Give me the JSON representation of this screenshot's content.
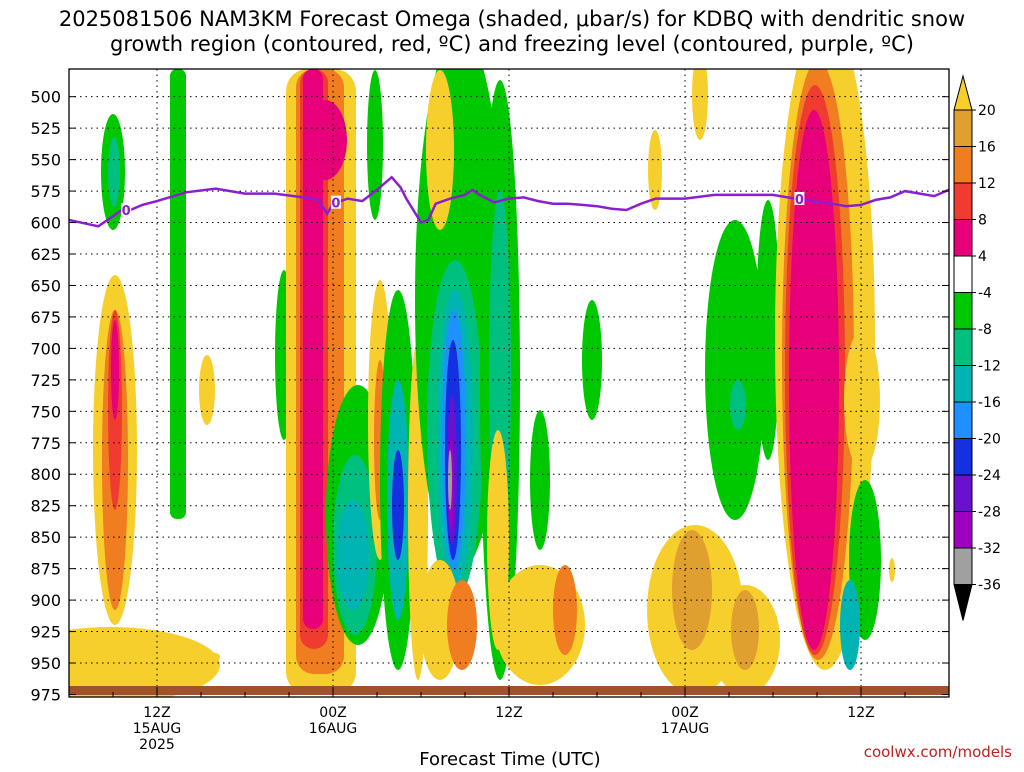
{
  "title_line1": "2025081506 NAM3KM Forecast Omega (shaded, μbar/s) for KDBQ with dendritic snow",
  "title_line2": "growth region (contoured, red, ºC) and freezing level (contoured, purple, ºC)",
  "xlabel": "Forecast Time (UTC)",
  "credit": "coolwx.com/models",
  "chart_data": {
    "type": "heatmap",
    "title": "2025081506 NAM3KM Forecast Omega (shaded, μbar/s) for KDBQ with dendritic snow growth region (contoured, red, ºC) and freezing level (contoured, purple, ºC)",
    "xlabel": "Forecast Time (UTC)",
    "ylabel": "",
    "x_range_hours": [
      0,
      60
    ],
    "y_range_hpa": [
      977,
      478
    ],
    "y_ticks": [
      "500",
      "525",
      "550",
      "575",
      "600",
      "625",
      "650",
      "675",
      "700",
      "725",
      "750",
      "775",
      "800",
      "825",
      "850",
      "875",
      "900",
      "925",
      "950",
      "975"
    ],
    "x_ticks": [
      {
        "hour": 6,
        "line1": "12Z",
        "line2": "15AUG",
        "line3": "2025"
      },
      {
        "hour": 18,
        "line1": "00Z",
        "line2": "16AUG",
        "line3": ""
      },
      {
        "hour": 30,
        "line1": "12Z",
        "line2": "",
        "line3": ""
      },
      {
        "hour": 42,
        "line1": "00Z",
        "line2": "17AUG",
        "line3": ""
      },
      {
        "hour": 54,
        "line1": "12Z",
        "line2": "",
        "line3": ""
      }
    ],
    "colorbar": {
      "labels": [
        "20",
        "16",
        "12",
        "8",
        "4",
        "-4",
        "-8",
        "-12",
        "-16",
        "-20",
        "-24",
        "-28",
        "-32",
        "-36"
      ],
      "colors": [
        "#f7cf2d",
        "#e0a030",
        "#f07d20",
        "#f03c30",
        "#e8007a",
        "#ffffff",
        "#00c800",
        "#00c080",
        "#00b4b4",
        "#1e90ff",
        "#1430e0",
        "#6a10d0",
        "#a000c0",
        "#a0a0a0",
        "#000000"
      ]
    },
    "freezing_level": {
      "label": "0",
      "hours": [
        0,
        2,
        3,
        3.6,
        4,
        5,
        6,
        8,
        10,
        12,
        14,
        16,
        17,
        17.6,
        18,
        19,
        20,
        21,
        22,
        22.6,
        23,
        24,
        24.5,
        25,
        26,
        27,
        27.5,
        28,
        29,
        30,
        31,
        32,
        33,
        34,
        35,
        36,
        37,
        38,
        39,
        40,
        42,
        44,
        46,
        48,
        50,
        52,
        53,
        54,
        55,
        56,
        57,
        58,
        59,
        60
      ],
      "hpa": [
        598,
        603,
        595,
        590,
        591,
        586,
        583,
        576,
        573,
        577,
        577,
        580,
        582,
        593,
        585,
        581,
        583,
        574,
        564,
        572,
        581,
        600,
        598,
        585,
        581,
        578,
        574,
        578,
        584,
        581,
        580,
        583,
        585,
        585,
        586,
        587,
        589,
        590,
        585,
        581,
        581,
        578,
        578,
        578,
        582,
        585,
        587,
        586,
        582,
        580,
        575,
        577,
        579,
        574
      ]
    }
  }
}
